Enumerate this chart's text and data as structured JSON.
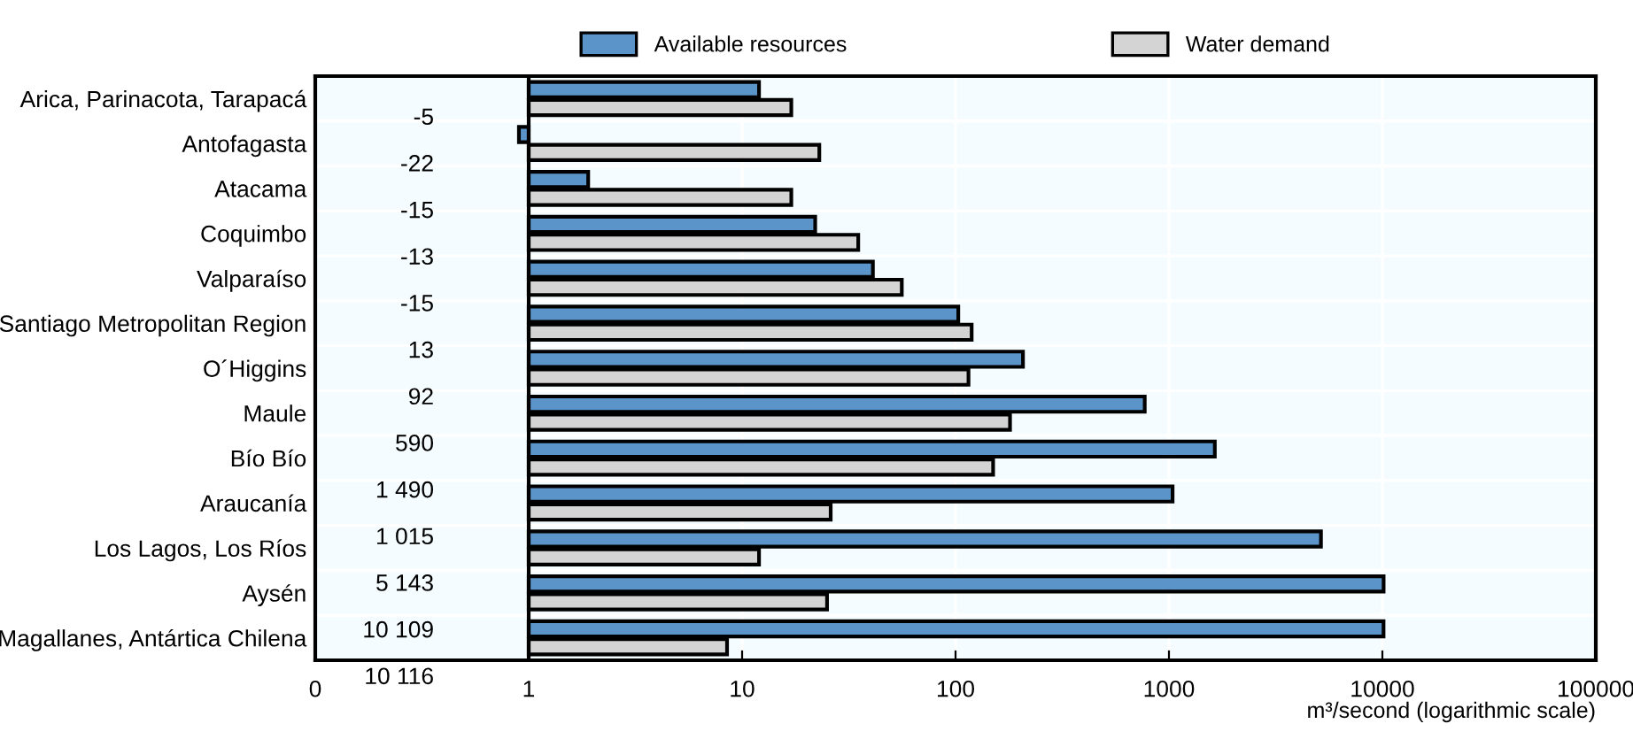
{
  "chart_data": {
    "type": "bar",
    "orientation": "horizontal",
    "categories": [
      "Arica, Parinacota, Tarapacá",
      "Antofagasta",
      "Atacama",
      "Coquimbo",
      "Valparaíso",
      "Santiago Metropolitan Region",
      "O´Higgins",
      "Maule",
      "Bío Bío",
      "Araucanía",
      "Los Lagos, Los Ríos",
      "Aysén",
      "Magallanes, Antártica Chilena"
    ],
    "series": [
      {
        "name": "Available resources",
        "color": "#5b94c8",
        "base": [
          1,
          1,
          1,
          1,
          1,
          1,
          1,
          1,
          1,
          1,
          1,
          1,
          1
        ],
        "values": [
          11,
          -0.1,
          0.9,
          21,
          40,
          102,
          206,
          769,
          1639,
          1039,
          5154,
          10133,
          10124
        ]
      },
      {
        "name": "Water demand",
        "color": "#d4d4d4",
        "base": [
          1,
          1,
          1,
          1,
          1,
          1,
          1,
          1,
          1,
          1,
          1,
          1,
          1
        ],
        "values": [
          16,
          22,
          16,
          34,
          55,
          118,
          114,
          179,
          149,
          25,
          11,
          24,
          7.5
        ]
      }
    ],
    "annotations": [
      "-5",
      "-22",
      "-15",
      "-13",
      "-15",
      "13",
      "92",
      "590",
      "1 490",
      "1 015",
      "5 143",
      "10 109",
      "10 116"
    ],
    "xlabel": "m³/second (logarithmic scale)",
    "log": "x",
    "xlim": [
      0.1,
      100000
    ],
    "xticks": [
      {
        "value": 0.1,
        "label": "0"
      },
      1,
      10,
      100,
      1000,
      10000,
      100000
    ],
    "ref_lines": [
      {
        "axis": "x",
        "value": 1,
        "color": "#000000"
      }
    ],
    "grid": true,
    "legend": "top"
  }
}
